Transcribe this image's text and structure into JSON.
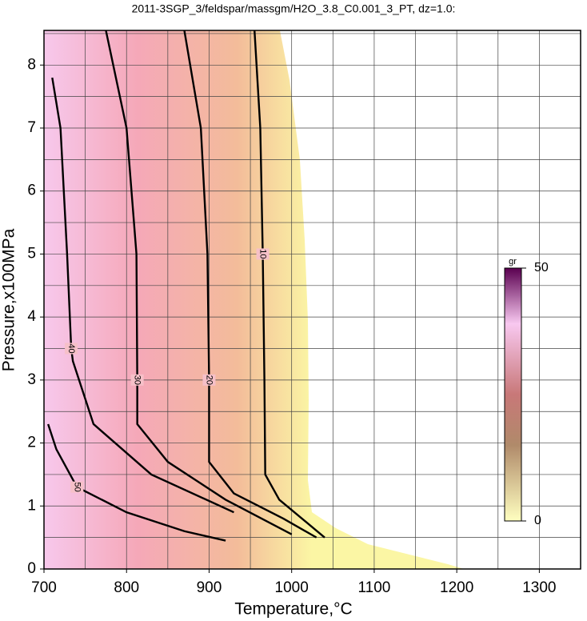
{
  "chart_data": {
    "type": "contour",
    "title": "2011-3SGP_3/feldspar/massgm/H2O_3.8_C0.001_3_PT, dz=1.0:",
    "xlabel": "Temperature,°C",
    "ylabel": "Pressure,x100MPa",
    "xlim": [
      700,
      1350
    ],
    "ylim": [
      0,
      8.55
    ],
    "xticks": [
      700,
      800,
      900,
      1000,
      1100,
      1200,
      1300
    ],
    "yticks": [
      0,
      1,
      2,
      3,
      4,
      5,
      6,
      7,
      8
    ],
    "grid": true,
    "contours": [
      {
        "level": 10,
        "x": [
          955,
          962,
          965,
          967,
          968,
          985,
          1040
        ],
        "y": [
          8.55,
          7,
          5,
          3,
          1.5,
          1.1,
          0.5
        ]
      },
      {
        "level": 20,
        "x": [
          870,
          890,
          898,
          900,
          900,
          930,
          990,
          1030
        ],
        "y": [
          8.55,
          7,
          5,
          3,
          1.7,
          1.2,
          0.8,
          0.5
        ]
      },
      {
        "level": 30,
        "x": [
          775,
          800,
          812,
          813,
          813,
          850,
          920,
          1000
        ],
        "y": [
          8.55,
          7,
          5,
          3,
          2.3,
          1.7,
          1.1,
          0.55
        ]
      },
      {
        "level": 40,
        "x": [
          710,
          720,
          728,
          733,
          735,
          760,
          830,
          930
        ],
        "y": [
          7.8,
          7,
          5,
          3.5,
          3.3,
          2.3,
          1.5,
          0.9
        ]
      },
      {
        "level": 50,
        "x": [
          705,
          715,
          740,
          800,
          870,
          920
        ],
        "y": [
          2.3,
          1.9,
          1.3,
          0.9,
          0.6,
          0.45
        ]
      }
    ],
    "colorbar": {
      "label": "gr",
      "lim": [
        0,
        50
      ],
      "ticks": [
        0,
        50
      ]
    }
  }
}
